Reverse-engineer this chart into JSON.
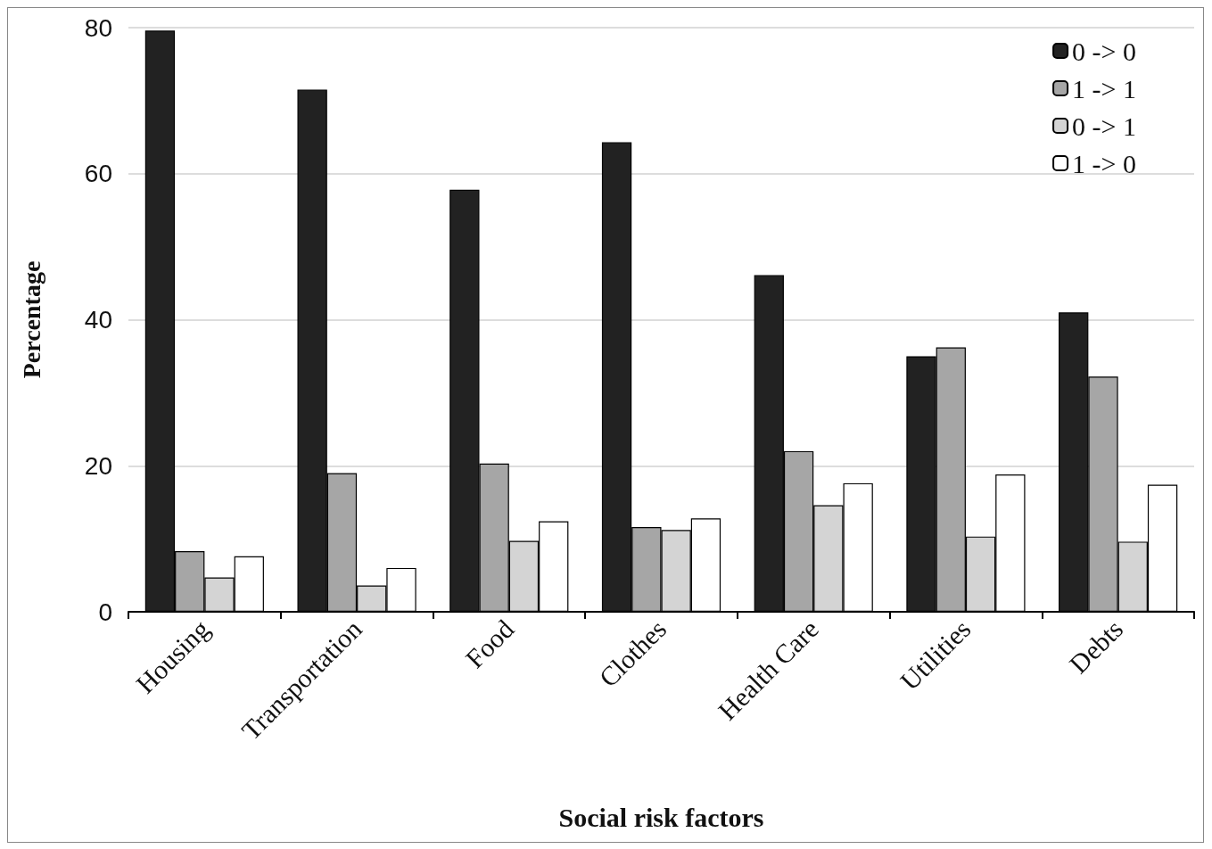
{
  "chart_data": {
    "type": "bar",
    "xlabel": "Social risk factors",
    "ylabel": "Percentage",
    "categories": [
      "Housing",
      "Transportation",
      "Food",
      "Clothes",
      "Health Care",
      "Utilities",
      "Debts"
    ],
    "series": [
      {
        "name": "0 -> 0",
        "color": "#222222",
        "values": [
          79.6,
          71.5,
          57.8,
          64.3,
          46.1,
          35.0,
          41.0
        ]
      },
      {
        "name": "1 -> 1",
        "color": "#a6a6a6",
        "values": [
          8.3,
          19.0,
          20.3,
          11.6,
          22.0,
          36.2,
          32.2
        ]
      },
      {
        "name": "0 -> 1",
        "color": "#d4d4d4",
        "values": [
          4.7,
          3.6,
          9.7,
          11.2,
          14.6,
          10.3,
          9.6
        ]
      },
      {
        "name": "1 -> 0",
        "color": "#ffffff",
        "values": [
          7.6,
          6.0,
          12.4,
          12.8,
          17.6,
          18.8,
          17.4
        ]
      }
    ],
    "ylim": [
      0,
      80
    ],
    "yticks": [
      0,
      20,
      40,
      60,
      80
    ],
    "grid": "y",
    "legend": "top right"
  }
}
